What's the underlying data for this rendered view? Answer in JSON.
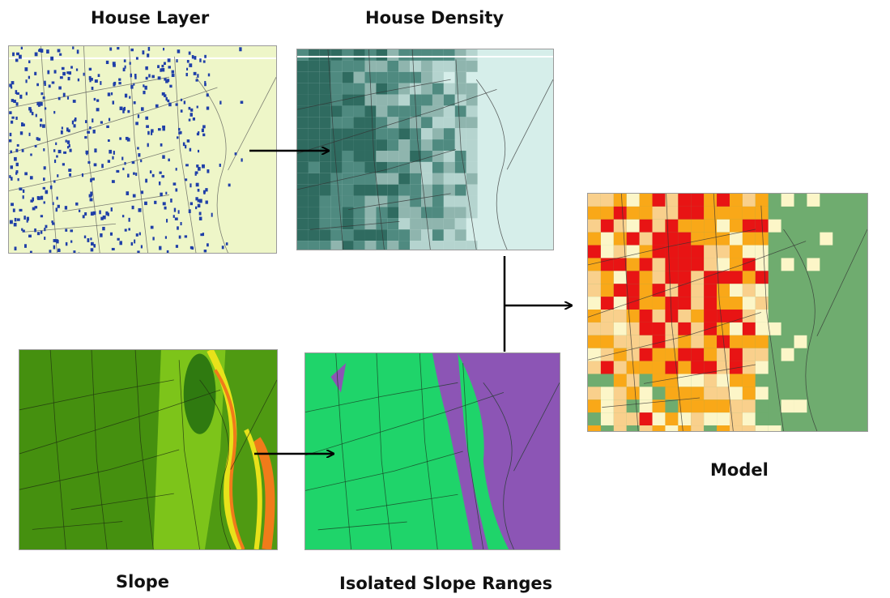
{
  "labels": {
    "house_layer": "House Layer",
    "house_density": "House Density",
    "slope": "Slope",
    "isolated_slope_ranges": "Isolated Slope Ranges",
    "model": "Model"
  },
  "colors": {
    "house_layer_bg": "#eef6c8",
    "house_marker": "#1f3fa8",
    "density_light": "#d6eeea",
    "density_mid": "#8fb5ae",
    "density_dark": "#2f6b60",
    "slope_green": "#4f9a12",
    "slope_yellow": "#e8e21a",
    "slope_orange": "#f07b1a",
    "isolated_green": "#1fd46a",
    "isolated_purple": "#8c55b5",
    "model_red": "#e81414",
    "model_orange": "#f9a818",
    "model_peach": "#f9d08c",
    "model_cream": "#fcf6c8",
    "model_green": "#6fac6f",
    "road_line": "#333333",
    "arrow": "#000000"
  }
}
